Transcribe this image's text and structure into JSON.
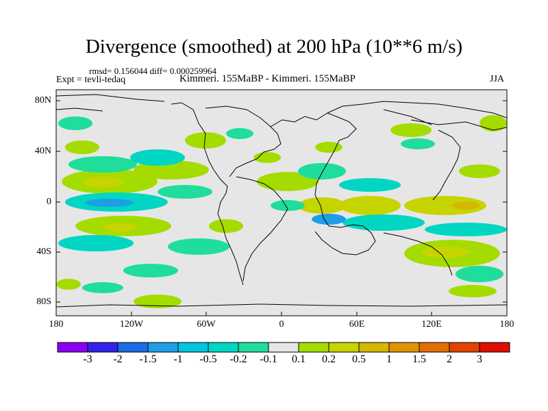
{
  "title": "Divergence (smoothed) at 200 hPa (10**6 m/s)",
  "stats": "rmsd= 0.156044 diff= 0.000259964",
  "experiment": "Expt = tevli-tedaq",
  "subtitle": "Kimmeri. 155MaBP - Kimmeri. 155MaBP",
  "season": "JJA",
  "map": {
    "lat_labels": [
      "80N",
      "40N",
      "0",
      "40S",
      "80S"
    ],
    "lon_labels": [
      "180",
      "120W",
      "60W",
      "0",
      "60E",
      "120E",
      "180"
    ]
  },
  "colorbar": {
    "colors": [
      "#8b00f0",
      "#3224e8",
      "#1e6be6",
      "#1e9ee6",
      "#00c4e0",
      "#00d6c2",
      "#1fdd9a",
      "#e6e6e6",
      "#a5dc00",
      "#c6d400",
      "#d5b600",
      "#e09300",
      "#e06e00",
      "#e04400",
      "#e00f00"
    ],
    "labels": [
      "-3",
      "-2",
      "-1.5",
      "-1",
      "-0.5",
      "-0.2",
      "-0.1",
      "0.1",
      "0.2",
      "0.5",
      "1",
      "1.5",
      "2",
      "3"
    ]
  },
  "palette": {
    "background": "#e6e6e6",
    "negative_weak": "#1fdd9a",
    "negative_mid": "#00d6c2",
    "negative_strong": "#1e9ee6",
    "positive_weak": "#a5dc00",
    "positive_mid": "#c6d400",
    "positive_strong": "#d5b600"
  }
}
